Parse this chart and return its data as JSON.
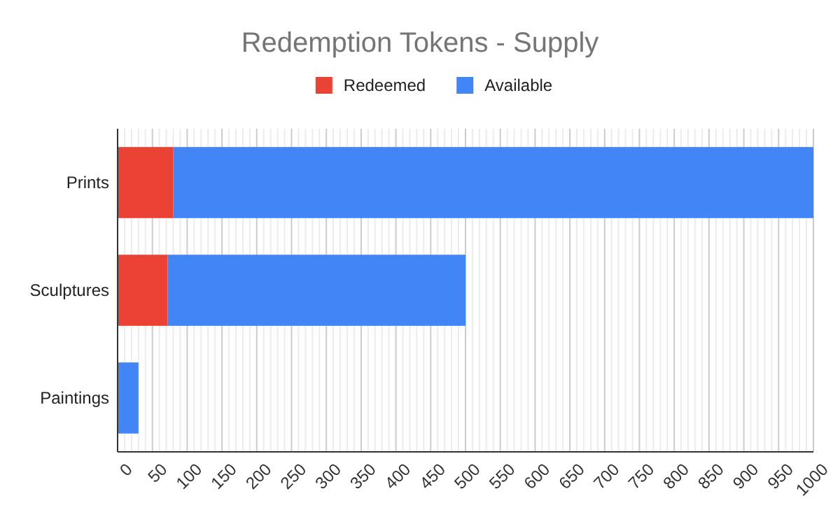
{
  "chart_data": {
    "type": "bar",
    "orientation": "horizontal",
    "stacked": true,
    "title": "Redemption Tokens - Supply",
    "categories": [
      "Prints",
      "Sculptures",
      "Paintings"
    ],
    "series": [
      {
        "name": "Redeemed",
        "color": "#ea4335",
        "values": [
          80,
          72,
          0
        ]
      },
      {
        "name": "Available",
        "color": "#4285f4",
        "values": [
          920,
          428,
          30
        ]
      }
    ],
    "xlim": [
      0,
      1000
    ],
    "xticks": [
      0,
      50,
      100,
      150,
      200,
      250,
      300,
      350,
      400,
      450,
      500,
      550,
      600,
      650,
      700,
      750,
      800,
      850,
      900,
      950,
      1000
    ],
    "grid": "x",
    "legend": "top"
  }
}
